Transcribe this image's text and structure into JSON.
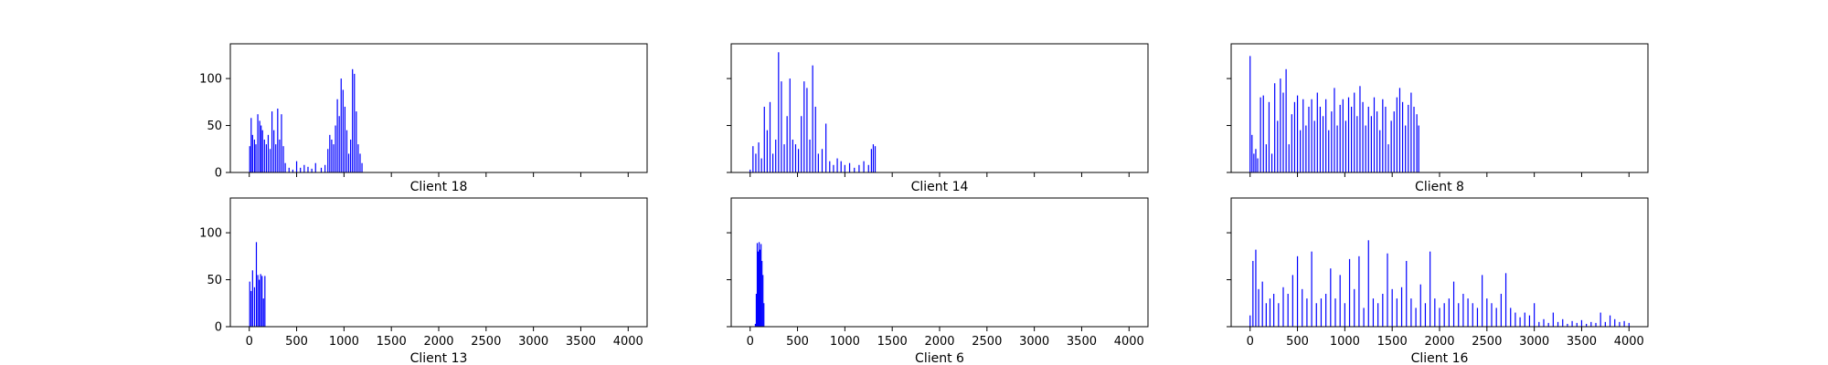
{
  "chart_data": {
    "type": "bar",
    "xlim": [
      -200,
      4200
    ],
    "ylim": [
      0,
      137
    ],
    "x_ticks": [
      0,
      500,
      1000,
      1500,
      2000,
      2500,
      3000,
      3500,
      4000
    ],
    "y_ticks": [
      0,
      50,
      100
    ],
    "bar_color": "#0000ff",
    "sharey": true,
    "sharex": true,
    "x_tick_labels_on": "bottom row only",
    "y_tick_labels_on": "left column only",
    "grid": false,
    "panels": [
      {
        "title": "Client 18",
        "series": [
          {
            "x": [
              5,
              20,
              35,
              55,
              70,
              90,
              110,
              125,
              140,
              160,
              180,
              200,
              220,
              240,
              260,
              280,
              300,
              320,
              340,
              360,
              380,
              420,
              460,
              500,
              540,
              580,
              620,
              660,
              700,
              760,
              800,
              830,
              850,
              870,
              890,
              910,
              930,
              950,
              970,
              990,
              1010,
              1030,
              1050,
              1070,
              1090,
              1110,
              1130,
              1150,
              1170,
              1190
            ],
            "y": [
              28,
              58,
              40,
              35,
              30,
              62,
              55,
              50,
              45,
              35,
              30,
              40,
              25,
              65,
              45,
              30,
              68,
              35,
              62,
              28,
              10,
              5,
              3,
              12,
              5,
              8,
              6,
              4,
              10,
              5,
              8,
              25,
              40,
              35,
              30,
              50,
              78,
              60,
              100,
              88,
              70,
              45,
              20,
              35,
              110,
              105,
              65,
              30,
              20,
              10
            ]
          }
        ]
      },
      {
        "title": "Client 14",
        "series": [
          {
            "x": [
              0,
              30,
              60,
              90,
              120,
              150,
              180,
              210,
              240,
              270,
              300,
              330,
              360,
              390,
              420,
              450,
              480,
              510,
              540,
              570,
              600,
              630,
              660,
              690,
              720,
              760,
              800,
              840,
              880,
              920,
              960,
              1000,
              1050,
              1100,
              1150,
              1200,
              1250,
              1280,
              1300,
              1320
            ],
            "y": [
              3,
              28,
              20,
              32,
              15,
              70,
              45,
              75,
              20,
              35,
              128,
              97,
              30,
              60,
              100,
              35,
              30,
              25,
              60,
              97,
              90,
              35,
              114,
              70,
              20,
              25,
              52,
              12,
              8,
              15,
              12,
              8,
              10,
              5,
              8,
              12,
              8,
              25,
              30,
              28
            ]
          }
        ]
      },
      {
        "title": "Client 8",
        "series": [
          {
            "x": [
              0,
              20,
              40,
              60,
              80,
              110,
              140,
              170,
              200,
              230,
              260,
              290,
              320,
              350,
              380,
              410,
              440,
              470,
              500,
              530,
              560,
              590,
              620,
              650,
              680,
              710,
              740,
              770,
              800,
              830,
              860,
              890,
              920,
              950,
              980,
              1010,
              1040,
              1070,
              1100,
              1130,
              1160,
              1190,
              1220,
              1250,
              1280,
              1310,
              1340,
              1370,
              1400,
              1430,
              1460,
              1490,
              1520,
              1550,
              1580,
              1610,
              1640,
              1670,
              1700,
              1730,
              1760,
              1780
            ],
            "y": [
              124,
              40,
              20,
              25,
              15,
              80,
              82,
              30,
              75,
              20,
              95,
              55,
              100,
              85,
              110,
              30,
              62,
              75,
              82,
              45,
              78,
              50,
              70,
              78,
              55,
              85,
              70,
              60,
              78,
              45,
              65,
              90,
              50,
              72,
              78,
              55,
              80,
              70,
              85,
              60,
              92,
              75,
              50,
              70,
              60,
              80,
              65,
              45,
              78,
              70,
              30,
              55,
              65,
              80,
              90,
              75,
              50,
              72,
              85,
              70,
              62,
              50
            ]
          }
        ]
      },
      {
        "title": "Client 13",
        "series": [
          {
            "x": [
              5,
              20,
              35,
              55,
              75,
              90,
              105,
              120,
              135,
              150,
              165
            ],
            "y": [
              48,
              38,
              60,
              42,
              90,
              55,
              50,
              56,
              54,
              30,
              54
            ]
          }
        ]
      },
      {
        "title": "Client 6",
        "series": [
          {
            "x": [
              55,
              65,
              75,
              85,
              95,
              105,
              115,
              125,
              135,
              145
            ],
            "y": [
              3,
              35,
              89,
              80,
              90,
              82,
              88,
              70,
              55,
              25
            ]
          }
        ]
      },
      {
        "title": "Client 16",
        "series": [
          {
            "x": [
              0,
              30,
              60,
              90,
              130,
              170,
              210,
              250,
              300,
              350,
              400,
              450,
              500,
              550,
              600,
              650,
              700,
              750,
              800,
              850,
              900,
              950,
              1000,
              1050,
              1100,
              1150,
              1200,
              1250,
              1300,
              1350,
              1400,
              1450,
              1500,
              1550,
              1600,
              1650,
              1700,
              1750,
              1800,
              1850,
              1900,
              1950,
              2000,
              2050,
              2100,
              2150,
              2200,
              2250,
              2300,
              2350,
              2400,
              2450,
              2500,
              2550,
              2600,
              2650,
              2700,
              2750,
              2800,
              2850,
              2900,
              2950,
              3000,
              3050,
              3100,
              3150,
              3200,
              3250,
              3300,
              3350,
              3400,
              3450,
              3500,
              3550,
              3600,
              3650,
              3700,
              3750,
              3800,
              3850,
              3900,
              3950,
              4000
            ],
            "y": [
              12,
              70,
              82,
              40,
              48,
              25,
              30,
              35,
              25,
              42,
              35,
              55,
              75,
              40,
              30,
              80,
              25,
              30,
              35,
              62,
              30,
              55,
              25,
              72,
              40,
              75,
              20,
              92,
              30,
              25,
              35,
              78,
              40,
              30,
              42,
              70,
              30,
              20,
              45,
              25,
              80,
              30,
              20,
              25,
              30,
              48,
              25,
              35,
              30,
              25,
              20,
              55,
              30,
              25,
              20,
              35,
              57,
              20,
              15,
              10,
              15,
              12,
              25,
              5,
              8,
              4,
              15,
              5,
              8,
              3,
              6,
              4,
              7,
              3,
              5,
              4,
              15,
              5,
              12,
              8,
              5,
              6,
              4
            ]
          }
        ]
      }
    ]
  }
}
